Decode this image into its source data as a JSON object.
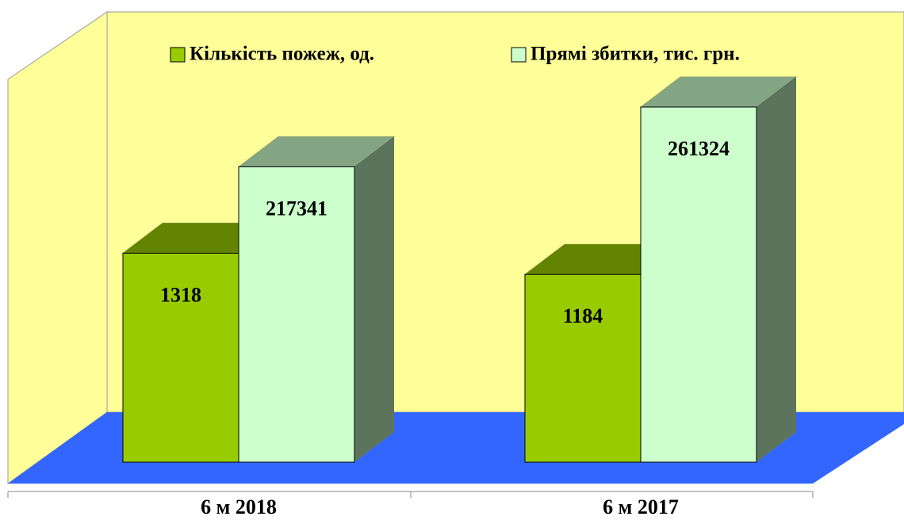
{
  "chart_data": {
    "type": "bar3d",
    "categories": [
      "6 м 2018",
      "6 м 2017"
    ],
    "series": [
      {
        "name": "Кількість пожеж, од.",
        "color": "#99cc00",
        "values": [
          1318,
          1184
        ]
      },
      {
        "name": "Прямі збитки, тис. грн.",
        "color": "#ccffcc",
        "values": [
          217341,
          261324
        ],
        "axis": "y2"
      }
    ],
    "ylim": [
      0,
      2400
    ],
    "y2lim": [
      0,
      280000
    ],
    "legend": "top"
  }
}
